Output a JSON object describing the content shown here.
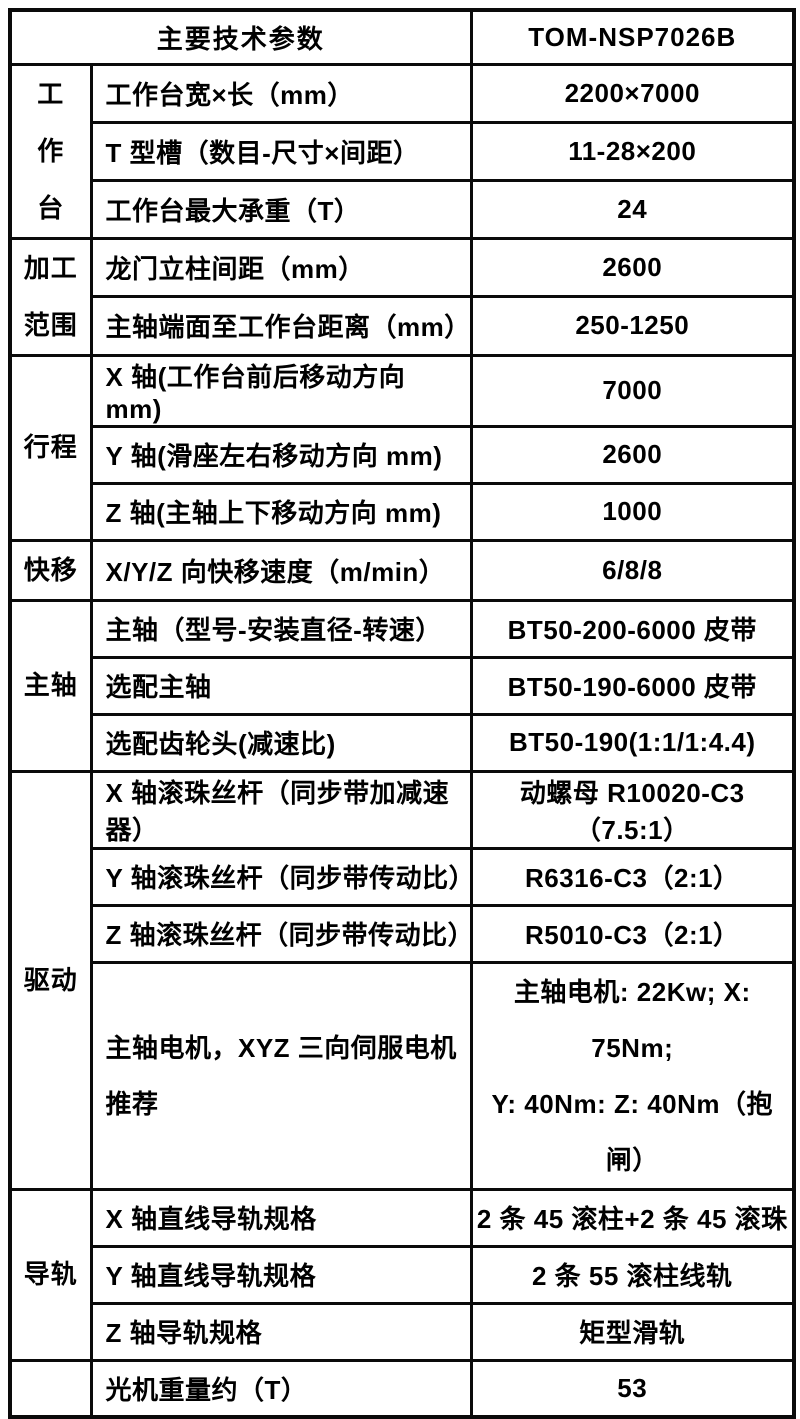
{
  "table": {
    "header": {
      "title": "主要技术参数",
      "model": "TOM-NSP7026B"
    },
    "groups": [
      {
        "label": "工作台",
        "label_display": "工\n作\n台",
        "rows": [
          {
            "param": "工作台宽×长（mm）",
            "value": "2200×7000"
          },
          {
            "param": "T 型槽（数目-尺寸×间距）",
            "value": "11-28×200"
          },
          {
            "param": "工作台最大承重（T）",
            "value": "24"
          }
        ]
      },
      {
        "label": "加工范围",
        "label_display": "加工\n范围",
        "rows": [
          {
            "param": "龙门立柱间距（mm）",
            "value": "2600"
          },
          {
            "param": "主轴端面至工作台距离（mm）",
            "value": "250-1250"
          }
        ]
      },
      {
        "label": "行程",
        "label_display": "行程",
        "rows": [
          {
            "param": "X 轴(工作台前后移动方向 mm)",
            "value": "7000"
          },
          {
            "param": "Y 轴(滑座左右移动方向 mm)",
            "value": "2600"
          },
          {
            "param": "Z 轴(主轴上下移动方向 mm)",
            "value": "1000"
          }
        ]
      },
      {
        "label": "快移",
        "label_display": "快移",
        "rows": [
          {
            "param": "X/Y/Z 向快移速度（m/min）",
            "value": "6/8/8"
          }
        ]
      },
      {
        "label": "主轴",
        "label_display": "主轴",
        "rows": [
          {
            "param": "主轴（型号-安装直径-转速）",
            "value": "BT50-200-6000 皮带"
          },
          {
            "param": "选配主轴",
            "value": "BT50-190-6000 皮带"
          },
          {
            "param": "选配齿轮头(减速比)",
            "value": "BT50-190(1:1/1:4.4)"
          }
        ]
      },
      {
        "label": "驱动",
        "label_display": "驱动",
        "rows": [
          {
            "param": "X 轴滚珠丝杆（同步带加减速器）",
            "value": "动螺母 R10020-C3（7.5:1）"
          },
          {
            "param": "Y 轴滚珠丝杆（同步带传动比）",
            "value": "R6316-C3（2:1）"
          },
          {
            "param": "Z 轴滚珠丝杆（同步带传动比）",
            "value": "R5010-C3（2:1）"
          },
          {
            "param": "主轴电机，XYZ 三向伺服电机推荐",
            "value": "主轴电机: 22Kw; X: 75Nm;\nY: 40Nm: Z: 40Nm（抱闸）"
          }
        ]
      },
      {
        "label": "导轨",
        "label_display": "导轨",
        "rows": [
          {
            "param": "X 轴直线导轨规格",
            "value": "2 条 45 滚柱+2 条 45 滚珠"
          },
          {
            "param": "Y 轴直线导轨规格",
            "value": "2 条 55 滚柱线轨"
          },
          {
            "param": "Z 轴导轨规格",
            "value": "矩型滑轨"
          }
        ]
      },
      {
        "label": "",
        "label_display": "",
        "rows": [
          {
            "param": "光机重量约（T）",
            "value": "53"
          }
        ]
      }
    ],
    "colors": {
      "border": "#0a0a0a",
      "text": "#000000",
      "background": "#ffffff"
    }
  }
}
